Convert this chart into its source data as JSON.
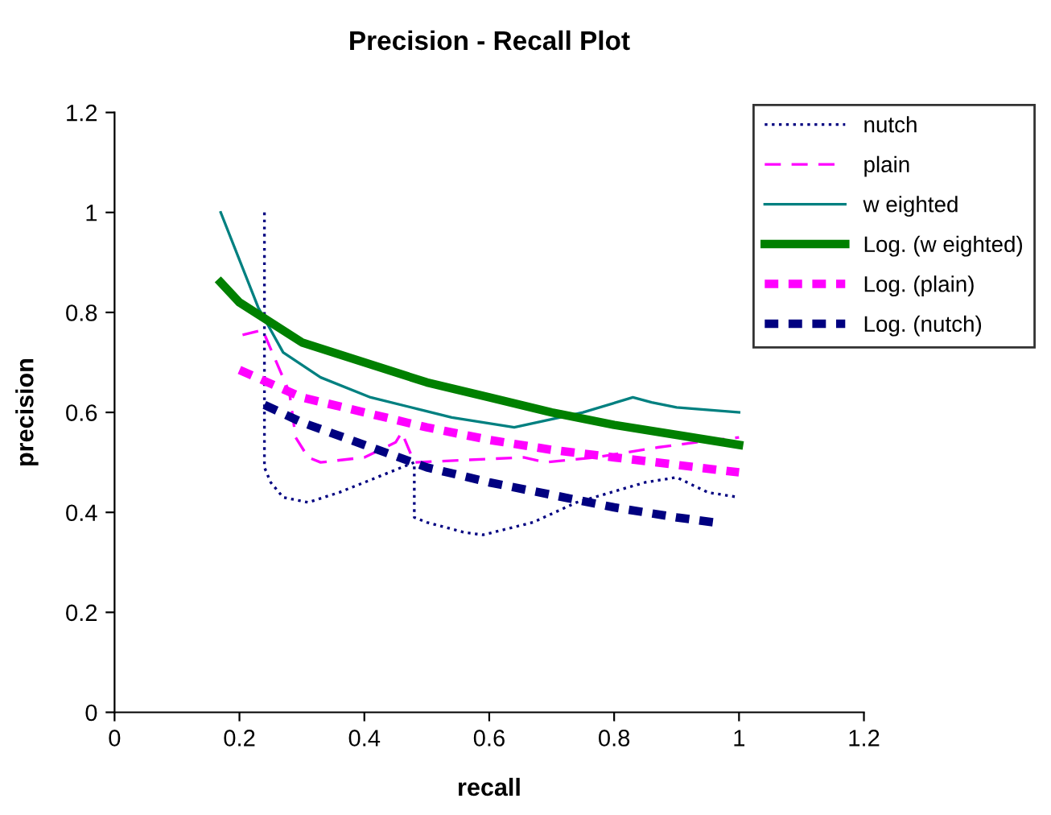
{
  "chart_data": {
    "type": "line",
    "title": "Precision - Recall Plot",
    "xlabel": "recall",
    "ylabel": "precision",
    "xlim": [
      0,
      1.2
    ],
    "xticks": [
      0,
      0.2,
      0.4,
      0.6,
      0.8,
      1,
      1.2
    ],
    "ylim": [
      0,
      1.2
    ],
    "yticks": [
      0,
      0.2,
      0.4,
      0.6,
      0.8,
      1,
      1.2
    ],
    "grid": false,
    "legend": "top right",
    "marker": "none",
    "series": [
      {
        "name": "nutch",
        "color": "#000080",
        "line_style": "dotted",
        "x": [
          0.24,
          0.24,
          0.25,
          0.27,
          0.31,
          0.36,
          0.44,
          0.48,
          0.48,
          0.5,
          0.56,
          0.59,
          0.67,
          0.74,
          0.85,
          0.9,
          0.95,
          1.0
        ],
        "values": [
          1.0,
          0.49,
          0.46,
          0.43,
          0.42,
          0.44,
          0.48,
          0.5,
          0.39,
          0.38,
          0.36,
          0.355,
          0.38,
          0.42,
          0.46,
          0.47,
          0.44,
          0.43
        ]
      },
      {
        "name": "plain",
        "color": "#ff00ff",
        "line_style": "dashed",
        "x": [
          0.205,
          0.237,
          0.28,
          0.29,
          0.31,
          0.33,
          0.4,
          0.45,
          0.46,
          0.48,
          0.655,
          0.69,
          0.77,
          0.87,
          0.93,
          1.0
        ],
        "values": [
          0.755,
          0.765,
          0.64,
          0.55,
          0.51,
          0.5,
          0.51,
          0.54,
          0.56,
          0.5,
          0.51,
          0.5,
          0.51,
          0.53,
          0.54,
          0.55
        ]
      },
      {
        "name": "w eighted",
        "color": "#008080",
        "line_style": "solid",
        "x": [
          0.17,
          0.23,
          0.27,
          0.33,
          0.41,
          0.54,
          0.64,
          0.75,
          0.83,
          0.86,
          0.9,
          1.0
        ],
        "values": [
          1.0,
          0.81,
          0.72,
          0.67,
          0.63,
          0.59,
          0.57,
          0.6,
          0.63,
          0.62,
          0.61,
          0.6
        ]
      },
      {
        "name": "Log. (w eighted)",
        "color": "#008000",
        "line_style": "solid",
        "x": [
          0.17,
          0.2,
          0.3,
          0.4,
          0.5,
          0.6,
          0.7,
          0.8,
          0.9,
          1.0
        ],
        "values": [
          0.86,
          0.82,
          0.74,
          0.7,
          0.66,
          0.63,
          0.6,
          0.575,
          0.555,
          0.535
        ]
      },
      {
        "name": "Log. (plain)",
        "color": "#ff00ff",
        "line_style": "dashed",
        "x": [
          0.2,
          0.3,
          0.4,
          0.5,
          0.6,
          0.7,
          0.8,
          0.9,
          1.0
        ],
        "values": [
          0.685,
          0.63,
          0.6,
          0.57,
          0.545,
          0.525,
          0.51,
          0.495,
          0.48
        ]
      },
      {
        "name": "Log. (nutch)",
        "color": "#000080",
        "line_style": "dashed",
        "x": [
          0.24,
          0.3,
          0.4,
          0.5,
          0.6,
          0.7,
          0.8,
          0.9,
          0.96
        ],
        "values": [
          0.615,
          0.58,
          0.535,
          0.49,
          0.46,
          0.435,
          0.41,
          0.39,
          0.38
        ]
      }
    ]
  }
}
